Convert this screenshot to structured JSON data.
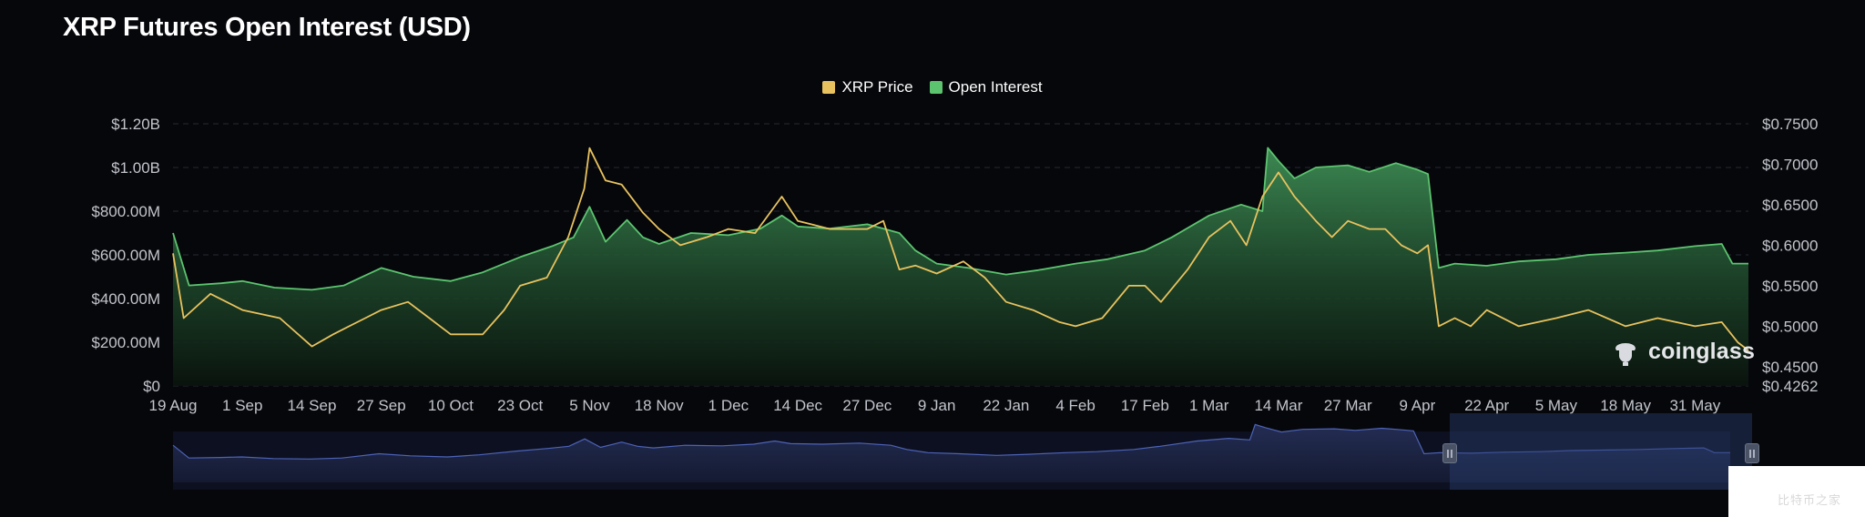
{
  "title": "XRP Futures Open Interest (USD)",
  "legend": [
    {
      "label": "XRP Price",
      "color": "#e8c25e"
    },
    {
      "label": "Open Interest",
      "color": "#5cc46f"
    }
  ],
  "watermark": "coinglass",
  "watermark_corner": "比特币之家",
  "chart_data": {
    "type": "area",
    "title": "XRP Futures Open Interest (USD)",
    "x_ticks": [
      "19 Aug",
      "1 Sep",
      "14 Sep",
      "27 Sep",
      "10 Oct",
      "23 Oct",
      "5 Nov",
      "18 Nov",
      "1 Dec",
      "14 Dec",
      "27 Dec",
      "9 Jan",
      "22 Jan",
      "4 Feb",
      "17 Feb",
      "1 Mar",
      "14 Mar",
      "27 Mar",
      "9 Apr",
      "22 Apr",
      "5 May",
      "18 May",
      "31 May"
    ],
    "y_left_ticks": [
      "$0",
      "$200.00M",
      "$400.00M",
      "$600.00M",
      "$800.00M",
      "$1.00B",
      "$1.20B"
    ],
    "y_left_range": [
      0,
      1200000000
    ],
    "y_right_ticks": [
      "$0.4262",
      "$0.4500",
      "$0.5000",
      "$0.5500",
      "$0.6000",
      "$0.6500",
      "$0.7000",
      "$0.7500"
    ],
    "y_right_range": [
      0.4262,
      0.75
    ],
    "grid": true,
    "legend_position": "top-center",
    "series": [
      {
        "name": "Open Interest",
        "axis": "left",
        "color": "#5cc46f",
        "points": [
          [
            "19 Aug",
            700
          ],
          [
            "22 Aug",
            460
          ],
          [
            "28 Aug",
            470
          ],
          [
            "1 Sep",
            480
          ],
          [
            "7 Sep",
            450
          ],
          [
            "14 Sep",
            440
          ],
          [
            "20 Sep",
            460
          ],
          [
            "27 Sep",
            540
          ],
          [
            "3 Oct",
            500
          ],
          [
            "10 Oct",
            480
          ],
          [
            "16 Oct",
            520
          ],
          [
            "23 Oct",
            590
          ],
          [
            "29 Oct",
            640
          ],
          [
            "2 Nov",
            680
          ],
          [
            "5 Nov",
            820
          ],
          [
            "8 Nov",
            660
          ],
          [
            "12 Nov",
            760
          ],
          [
            "15 Nov",
            680
          ],
          [
            "18 Nov",
            650
          ],
          [
            "24 Nov",
            700
          ],
          [
            "1 Dec",
            690
          ],
          [
            "7 Dec",
            720
          ],
          [
            "11 Dec",
            780
          ],
          [
            "14 Dec",
            730
          ],
          [
            "20 Dec",
            720
          ],
          [
            "27 Dec",
            740
          ],
          [
            "2 Jan",
            700
          ],
          [
            "5 Jan",
            620
          ],
          [
            "9 Jan",
            560
          ],
          [
            "15 Jan",
            540
          ],
          [
            "22 Jan",
            510
          ],
          [
            "28 Jan",
            530
          ],
          [
            "4 Feb",
            560
          ],
          [
            "10 Feb",
            580
          ],
          [
            "17 Feb",
            620
          ],
          [
            "22 Feb",
            680
          ],
          [
            "1 Mar",
            780
          ],
          [
            "7 Mar",
            830
          ],
          [
            "11 Mar",
            800
          ],
          [
            "12 Mar",
            1090
          ],
          [
            "14 Mar",
            1030
          ],
          [
            "17 Mar",
            950
          ],
          [
            "21 Mar",
            1000
          ],
          [
            "27 Mar",
            1010
          ],
          [
            "31 Mar",
            980
          ],
          [
            "5 Apr",
            1020
          ],
          [
            "9 Apr",
            990
          ],
          [
            "11 Apr",
            970
          ],
          [
            "13 Apr",
            540
          ],
          [
            "16 Apr",
            560
          ],
          [
            "22 Apr",
            550
          ],
          [
            "28 Apr",
            570
          ],
          [
            "5 May",
            580
          ],
          [
            "11 May",
            600
          ],
          [
            "18 May",
            610
          ],
          [
            "24 May",
            620
          ],
          [
            "31 May",
            640
          ],
          [
            "5 Jun",
            650
          ],
          [
            "7 Jun",
            560
          ],
          [
            "10 Jun",
            560
          ]
        ]
      },
      {
        "name": "XRP Price",
        "axis": "right",
        "color": "#e8c25e",
        "points": [
          [
            "19 Aug",
            0.59
          ],
          [
            "21 Aug",
            0.51
          ],
          [
            "26 Aug",
            0.54
          ],
          [
            "1 Sep",
            0.52
          ],
          [
            "8 Sep",
            0.51
          ],
          [
            "14 Sep",
            0.475
          ],
          [
            "18 Sep",
            0.49
          ],
          [
            "24 Sep",
            0.51
          ],
          [
            "27 Sep",
            0.52
          ],
          [
            "2 Oct",
            0.53
          ],
          [
            "6 Oct",
            0.51
          ],
          [
            "10 Oct",
            0.49
          ],
          [
            "16 Oct",
            0.49
          ],
          [
            "20 Oct",
            0.52
          ],
          [
            "23 Oct",
            0.55
          ],
          [
            "28 Oct",
            0.56
          ],
          [
            "1 Nov",
            0.61
          ],
          [
            "4 Nov",
            0.67
          ],
          [
            "5 Nov",
            0.72
          ],
          [
            "8 Nov",
            0.68
          ],
          [
            "11 Nov",
            0.675
          ],
          [
            "15 Nov",
            0.64
          ],
          [
            "18 Nov",
            0.62
          ],
          [
            "22 Nov",
            0.6
          ],
          [
            "27 Nov",
            0.61
          ],
          [
            "1 Dec",
            0.62
          ],
          [
            "6 Dec",
            0.615
          ],
          [
            "11 Dec",
            0.66
          ],
          [
            "14 Dec",
            0.63
          ],
          [
            "20 Dec",
            0.62
          ],
          [
            "27 Dec",
            0.62
          ],
          [
            "30 Dec",
            0.63
          ],
          [
            "2 Jan",
            0.57
          ],
          [
            "5 Jan",
            0.575
          ],
          [
            "9 Jan",
            0.565
          ],
          [
            "14 Jan",
            0.58
          ],
          [
            "18 Jan",
            0.56
          ],
          [
            "22 Jan",
            0.53
          ],
          [
            "27 Jan",
            0.52
          ],
          [
            "1 Feb",
            0.505
          ],
          [
            "4 Feb",
            0.5
          ],
          [
            "9 Feb",
            0.51
          ],
          [
            "14 Feb",
            0.55
          ],
          [
            "17 Feb",
            0.55
          ],
          [
            "20 Feb",
            0.53
          ],
          [
            "25 Feb",
            0.57
          ],
          [
            "1 Mar",
            0.61
          ],
          [
            "5 Mar",
            0.63
          ],
          [
            "8 Mar",
            0.6
          ],
          [
            "11 Mar",
            0.66
          ],
          [
            "14 Mar",
            0.69
          ],
          [
            "17 Mar",
            0.66
          ],
          [
            "21 Mar",
            0.63
          ],
          [
            "24 Mar",
            0.61
          ],
          [
            "27 Mar",
            0.63
          ],
          [
            "31 Mar",
            0.62
          ],
          [
            "3 Apr",
            0.62
          ],
          [
            "6 Apr",
            0.6
          ],
          [
            "9 Apr",
            0.59
          ],
          [
            "11 Apr",
            0.6
          ],
          [
            "13 Apr",
            0.5
          ],
          [
            "16 Apr",
            0.51
          ],
          [
            "19 Apr",
            0.5
          ],
          [
            "22 Apr",
            0.52
          ],
          [
            "28 Apr",
            0.5
          ],
          [
            "5 May",
            0.51
          ],
          [
            "11 May",
            0.52
          ],
          [
            "18 May",
            0.5
          ],
          [
            "24 May",
            0.51
          ],
          [
            "31 May",
            0.5
          ],
          [
            "5 Jun",
            0.505
          ],
          [
            "8 Jun",
            0.48
          ],
          [
            "10 Jun",
            0.47
          ]
        ]
      }
    ]
  }
}
